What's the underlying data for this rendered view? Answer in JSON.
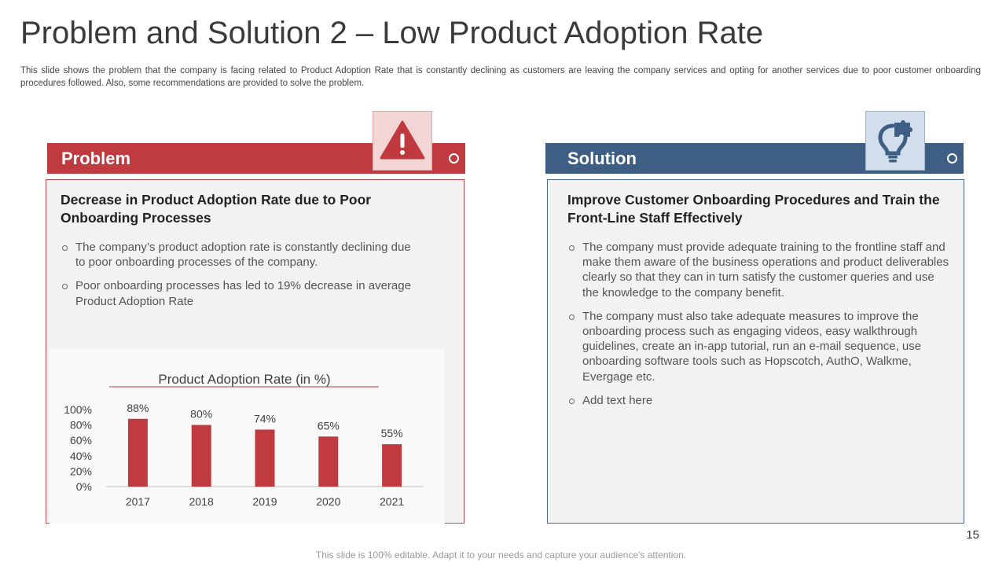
{
  "slide": {
    "title": "Problem and Solution 2 – Low Product Adoption Rate",
    "subtitle": "This slide shows the problem that the company is facing related to Product Adoption Rate that is constantly declining as customers are leaving the company services and opting for another services due to poor customer onboarding procedures followed. Also, some recommendations are provided to solve the problem.",
    "page_number": "15",
    "footer": "This slide is 100% editable. Adapt it to your needs and capture your audience's attention."
  },
  "colors": {
    "problem": "#bf3b40",
    "solution": "#3e5e84",
    "bar_fill": "#bf3b40"
  },
  "problem": {
    "label": "Problem",
    "icon": "warning-triangle-icon",
    "heading": "Decrease in Product Adoption Rate due to Poor Onboarding Processes",
    "bullets": [
      "The company’s product adoption rate is constantly declining due to poor onboarding processes of the company.",
      "Poor onboarding processes has led to 19% decrease in average Product Adoption Rate"
    ]
  },
  "solution": {
    "label": "Solution",
    "icon": "lightbulb-puzzle-icon",
    "heading": "Improve Customer Onboarding Procedures and Train the Front-Line Staff Effectively",
    "bullets": [
      "The company must provide adequate training to the frontline staff and make them aware of the business operations and product deliverables clearly so that they can in turn satisfy the customer queries and use the knowledge to the company benefit.",
      "The company must also take adequate measures to improve the onboarding process such as engaging videos, easy walkthrough guidelines, create an in-app tutorial, run an e-mail sequence, use onboarding software tools such as Hopscotch, AuthO, Walkme, Evergage etc.",
      "Add text here"
    ]
  },
  "chart_data": {
    "type": "bar",
    "title": "Product Adoption Rate (in %)",
    "categories": [
      "2017",
      "2018",
      "2019",
      "2020",
      "2021"
    ],
    "values": [
      88,
      80,
      74,
      65,
      55
    ],
    "data_labels": [
      "88%",
      "80%",
      "74%",
      "65%",
      "55%"
    ],
    "ytick_labels": [
      "100%",
      "80%",
      "60%",
      "40%",
      "20%",
      "0%"
    ],
    "ylim": [
      0,
      100
    ],
    "xlabel": "",
    "ylabel": "",
    "grid": false
  }
}
